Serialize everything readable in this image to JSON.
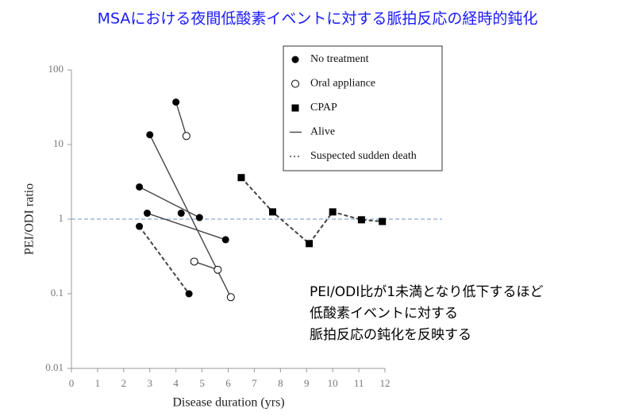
{
  "chart_data": {
    "type": "scatter",
    "title": "MSAにおける夜間低酸素イベントに対する脈拍反応の経時的鈍化",
    "x_label": "Disease duration (yrs)",
    "y_label": "PEI/ODI ratio",
    "log_y": true,
    "xlim": [
      0,
      12
    ],
    "ylim": [
      0.01,
      100
    ],
    "xticks": [
      0,
      1,
      2,
      3,
      4,
      5,
      6,
      7,
      8,
      9,
      10,
      11,
      12
    ],
    "yticks": [
      0.01,
      0.1,
      1,
      10,
      100
    ],
    "reference_line": 1,
    "reference_color": "#6f95c2",
    "legend": [
      {
        "label": "No treatment",
        "marker": "filled"
      },
      {
        "label": "Oral appliance",
        "marker": "open"
      },
      {
        "label": "CPAP",
        "marker": "square"
      },
      {
        "label": "Alive",
        "line": "solid"
      },
      {
        "label": "Suspected sudden death",
        "line": "dashed"
      }
    ],
    "series": [
      {
        "line": "solid",
        "markers": [
          "filled",
          "open"
        ],
        "x": [
          4.0,
          4.4
        ],
        "values": [
          37,
          13
        ]
      },
      {
        "line": "solid",
        "markers": [
          "filled",
          "open"
        ],
        "x": [
          3.0,
          6.1
        ],
        "values": [
          13.5,
          0.09
        ]
      },
      {
        "line": "solid",
        "markers": [
          "filled",
          "filled"
        ],
        "x": [
          2.6,
          4.9
        ],
        "values": [
          2.7,
          1.05
        ]
      },
      {
        "line": "solid",
        "markers": [
          "filled",
          "filled"
        ],
        "x": [
          2.9,
          5.9
        ],
        "values": [
          1.2,
          0.53
        ]
      },
      {
        "line": "solid",
        "markers": [
          "filled"
        ],
        "x": [
          4.2
        ],
        "values": [
          1.2
        ]
      },
      {
        "line": "dashed",
        "markers": [
          "filled",
          "filled"
        ],
        "x": [
          2.6,
          4.5
        ],
        "values": [
          0.8,
          0.1
        ]
      },
      {
        "line": "solid",
        "markers": [
          "open",
          "open"
        ],
        "x": [
          4.7,
          5.6
        ],
        "values": [
          0.27,
          0.21
        ]
      },
      {
        "line": "dashed",
        "markers": [
          "square",
          "square",
          "square",
          "square",
          "square",
          "square"
        ],
        "x": [
          6.5,
          7.7,
          9.1,
          10.0,
          11.1,
          11.9
        ],
        "values": [
          3.6,
          1.25,
          0.47,
          1.25,
          0.98,
          0.93
        ]
      }
    ],
    "annotation": [
      "PEI/ODI比が1未満となり低下するほど",
      "低酸素イベントに対する",
      "脈拍反応の鈍化を反映する"
    ]
  }
}
